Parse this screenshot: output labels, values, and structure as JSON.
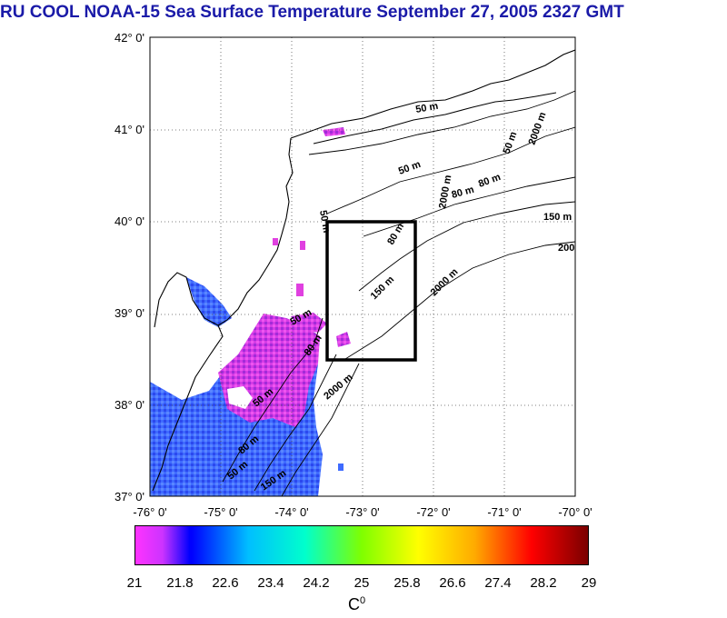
{
  "title": "RU COOL  NOAA-15 Sea Surface Temperature September 27, 2005 2327 GMT",
  "axes": {
    "lat_labels": [
      "42° 0'",
      "41° 0'",
      "40° 0'",
      "39° 0'",
      "38° 0'",
      "37° 0'"
    ],
    "lon_labels": [
      "-76° 0'",
      "-75° 0'",
      "-74° 0'",
      "-73° 0'",
      "-72° 0'",
      "-71° 0'",
      "-70° 0'"
    ],
    "lat_range": [
      37,
      42
    ],
    "lon_range": [
      -76,
      -70
    ],
    "grid": "dotted"
  },
  "contour_labels": [
    "50 m",
    "50 m",
    "80 m",
    "80 m",
    "50 m",
    "150 m",
    "200",
    "80 m",
    "150 m",
    "2000 m",
    "50 m",
    "80 m",
    "50 m",
    "2000 m",
    "2000 m",
    "50 m",
    "80 m",
    "50 m",
    "150 m",
    "2000 m"
  ],
  "study_box": {
    "lon": [
      -73.5,
      -72.3
    ],
    "lat": [
      38.5,
      40.0
    ]
  },
  "colorbar": {
    "ticks": [
      "21",
      "21.8",
      "22.6",
      "23.4",
      "24.2",
      "25",
      "25.8",
      "26.6",
      "27.4",
      "28.2",
      "29"
    ],
    "range": [
      21,
      29
    ],
    "unit_base": "C",
    "unit_sup": "0",
    "colors": [
      "#ff33ff",
      "#0000ff",
      "#00bfff",
      "#00ffcc",
      "#7fff00",
      "#ffff00",
      "#ffaa00",
      "#ff0000",
      "#7a0000"
    ]
  },
  "colors": {
    "title": "#1a1aa8",
    "land": "#ffffff",
    "cloud": "#ffffff",
    "sst_cold": "#3b5cff",
    "sst_pink": "#e040e0"
  }
}
